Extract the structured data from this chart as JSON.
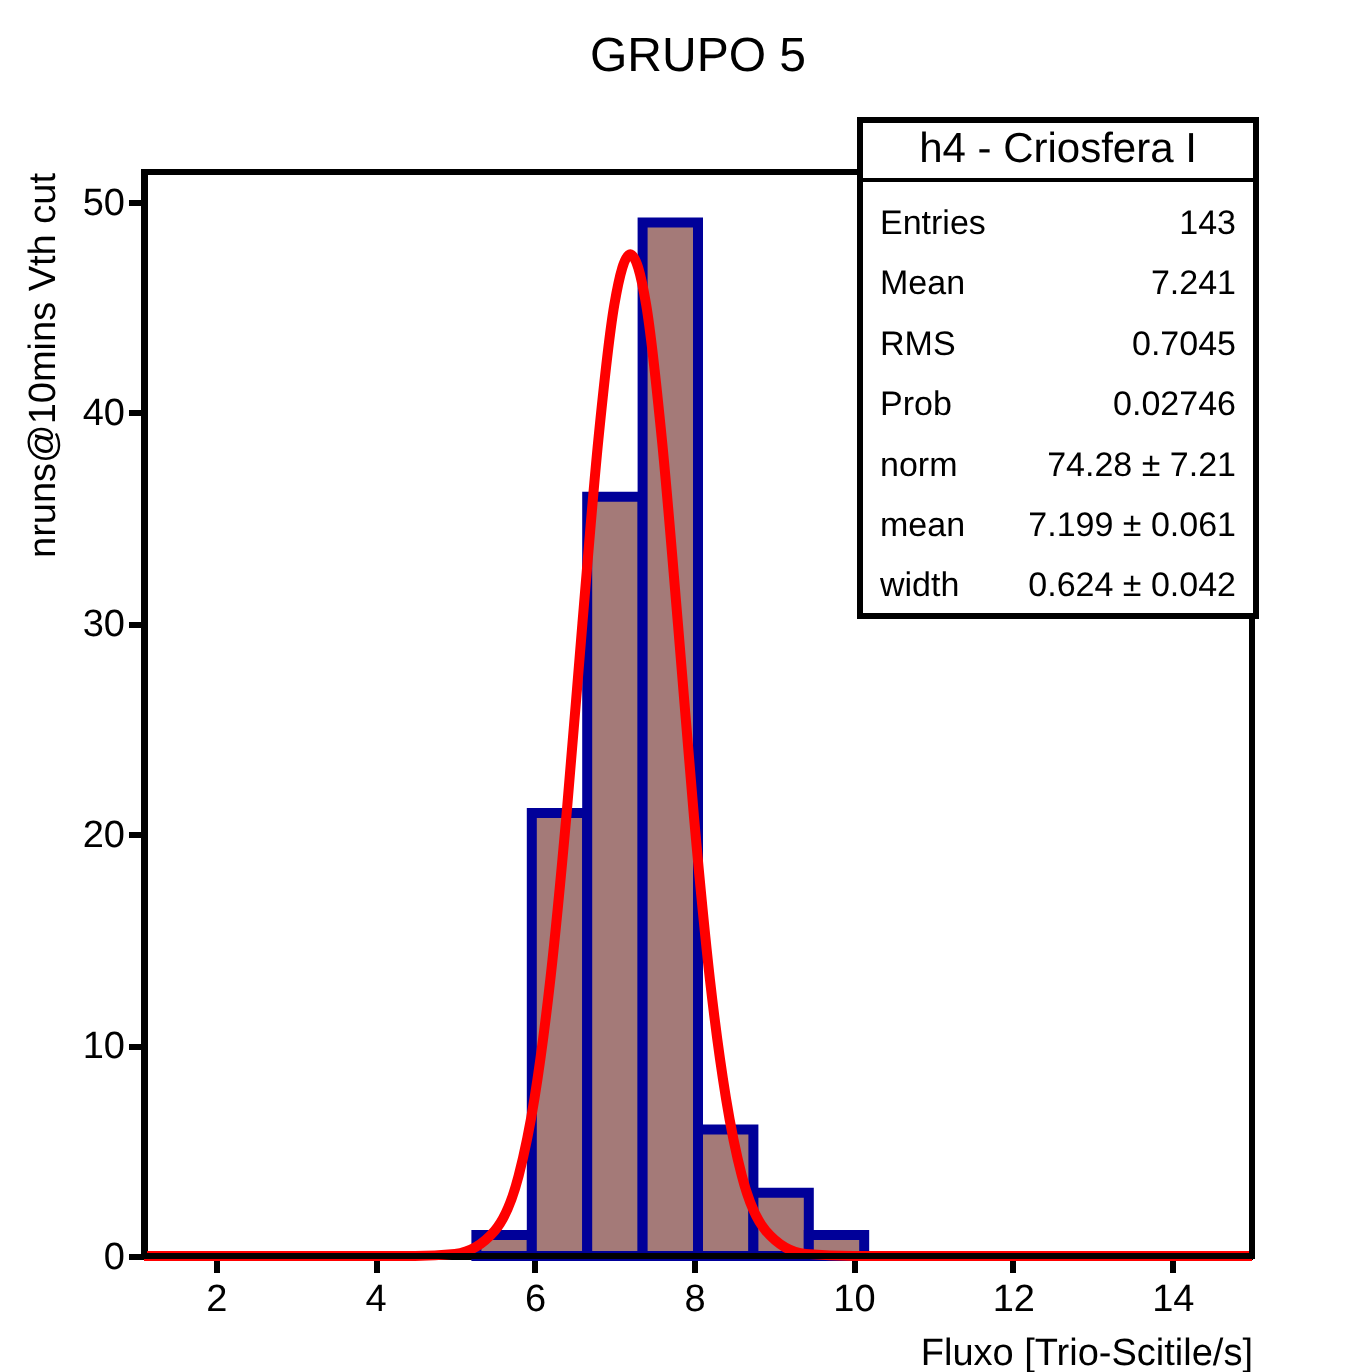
{
  "chart_data": {
    "type": "histogram",
    "title": "GRUPO 5",
    "xlabel": "Fluxo [Trio-Scitile/s]",
    "ylabel": "nruns@10mins Vth cut",
    "bins": [
      1.1,
      1.795,
      2.49,
      3.185,
      3.88,
      4.575,
      5.27,
      5.965,
      6.66,
      7.355,
      8.05,
      8.745,
      9.44,
      10.135,
      10.83,
      11.525,
      12.22,
      12.915,
      13.61,
      14.305,
      15.0
    ],
    "values": [
      0,
      0,
      0,
      0,
      0,
      0,
      1,
      21,
      36,
      49,
      6,
      3,
      1,
      0,
      0,
      0,
      0,
      0,
      0,
      0
    ],
    "color": "#a47a78",
    "series": [
      {
        "type": "line",
        "color": "#ff0000",
        "x": [
          1.1,
          4.5,
          5.0,
          5.5,
          5.8,
          6.0,
          6.2,
          6.4,
          6.6,
          6.8,
          7.0,
          7.2,
          7.4,
          7.6,
          7.8,
          8.0,
          8.2,
          8.4,
          8.6,
          8.9,
          9.4,
          10.0,
          15.0
        ],
        "values": [
          0,
          0,
          0.1,
          1.2,
          3.8,
          7.5,
          13.2,
          20.9,
          30,
          38.7,
          45.1,
          47.5,
          45.1,
          38.6,
          29.9,
          20.8,
          13.1,
          7.5,
          3.8,
          1.2,
          0.1,
          0,
          0
        ]
      }
    ],
    "xlim": [
      1.1,
      15.0
    ],
    "ylim": [
      0,
      51.4
    ],
    "xticks": [
      2,
      4,
      6,
      8,
      10,
      12,
      14
    ],
    "yticks": [
      0,
      10,
      20,
      30,
      40,
      50
    ],
    "grid": false,
    "annotations": [
      "h4 - Criosfera I",
      "Entries",
      "143",
      "Mean",
      "7.241",
      "RMS",
      "0.7045",
      "Prob",
      "0.02746",
      "norm",
      "74.28 ± 7.21",
      "mean",
      "7.199 ± 0.061",
      "width",
      "0.624 ± 0.042"
    ]
  }
}
